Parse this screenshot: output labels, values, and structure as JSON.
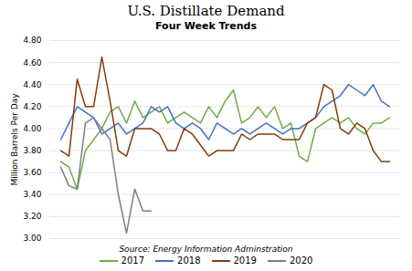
{
  "chart_data": {
    "type": "line",
    "title": "U.S. Distillate Demand",
    "subtitle": "Four Week Trends",
    "ylabel": "Million Barrels Per Day",
    "caption": "Source: Energy Information Adminstration",
    "categories": [
      null,
      null,
      null,
      null,
      null,
      null,
      null,
      null,
      null,
      null,
      null,
      null,
      null,
      null,
      null,
      null,
      null,
      null,
      null,
      null,
      null,
      null,
      null,
      null,
      null,
      null,
      null,
      null,
      null,
      null,
      null,
      null,
      null,
      null,
      null,
      null,
      null,
      null,
      null,
      null,
      null
    ],
    "series": [
      {
        "name": "2017",
        "color": "#70AD47",
        "values": [
          3.7,
          3.65,
          3.45,
          3.8,
          3.9,
          4.0,
          4.15,
          4.2,
          4.05,
          4.25,
          4.1,
          4.15,
          4.2,
          4.05,
          4.1,
          4.15,
          4.1,
          4.05,
          4.2,
          4.1,
          4.25,
          4.35,
          4.05,
          4.1,
          4.2,
          4.1,
          4.2,
          4.0,
          4.05,
          3.75,
          3.7,
          4.0,
          4.05,
          4.1,
          4.05,
          4.1,
          4.0,
          3.95,
          4.05,
          4.05,
          4.1
        ]
      },
      {
        "name": "2018",
        "color": "#4472C4",
        "values": [
          3.9,
          4.05,
          4.2,
          4.15,
          4.1,
          3.95,
          4.0,
          4.05,
          3.95,
          4.0,
          4.05,
          4.2,
          4.15,
          4.2,
          4.05,
          4.0,
          4.05,
          4.0,
          3.9,
          4.05,
          4.0,
          3.95,
          4.0,
          3.95,
          4.0,
          4.05,
          4.0,
          3.95,
          4.0,
          4.0,
          4.05,
          4.1,
          4.2,
          4.25,
          4.3,
          4.4,
          4.35,
          4.3,
          4.4,
          4.25,
          4.2
        ]
      },
      {
        "name": "2019",
        "color": "#843C0C",
        "values": [
          3.8,
          3.75,
          4.45,
          4.2,
          4.2,
          4.65,
          4.25,
          3.8,
          3.75,
          4.0,
          4.0,
          4.0,
          3.95,
          3.8,
          3.8,
          4.0,
          3.95,
          3.85,
          3.75,
          3.8,
          3.8,
          3.8,
          3.95,
          3.9,
          3.95,
          3.95,
          3.95,
          3.9,
          3.9,
          3.9,
          4.05,
          4.1,
          4.4,
          4.35,
          4.0,
          3.95,
          4.05,
          4.0,
          3.8,
          3.7,
          3.7
        ]
      },
      {
        "name": "2020",
        "color": "#7F7F7F",
        "values": [
          3.65,
          3.48,
          3.45,
          4.05,
          4.1,
          4.0,
          3.9,
          3.4,
          3.05,
          3.45,
          3.25,
          3.25,
          null,
          null,
          null,
          null,
          null,
          null,
          null,
          null,
          null,
          null,
          null,
          null,
          null,
          null,
          null,
          null,
          null,
          null,
          null,
          null,
          null,
          null,
          null,
          null,
          null,
          null,
          null,
          null,
          null
        ]
      }
    ],
    "ylim": [
      3.0,
      4.8
    ],
    "yticks": [
      {
        "value": 3.0,
        "label": "3.00"
      },
      {
        "value": 3.2,
        "label": "3.20"
      },
      {
        "value": 3.4,
        "label": "3.40"
      },
      {
        "value": 3.6,
        "label": "3.60"
      },
      {
        "value": 3.8,
        "label": "3.80"
      },
      {
        "value": 4.0,
        "label": "4.00"
      },
      {
        "value": 4.2,
        "label": "4.20"
      },
      {
        "value": 4.4,
        "label": "4.40"
      },
      {
        "value": 4.6,
        "label": "4.60"
      },
      {
        "value": 4.8,
        "label": "4.80"
      }
    ],
    "grid": true,
    "legend": "bottom",
    "tick_labels": "y"
  }
}
